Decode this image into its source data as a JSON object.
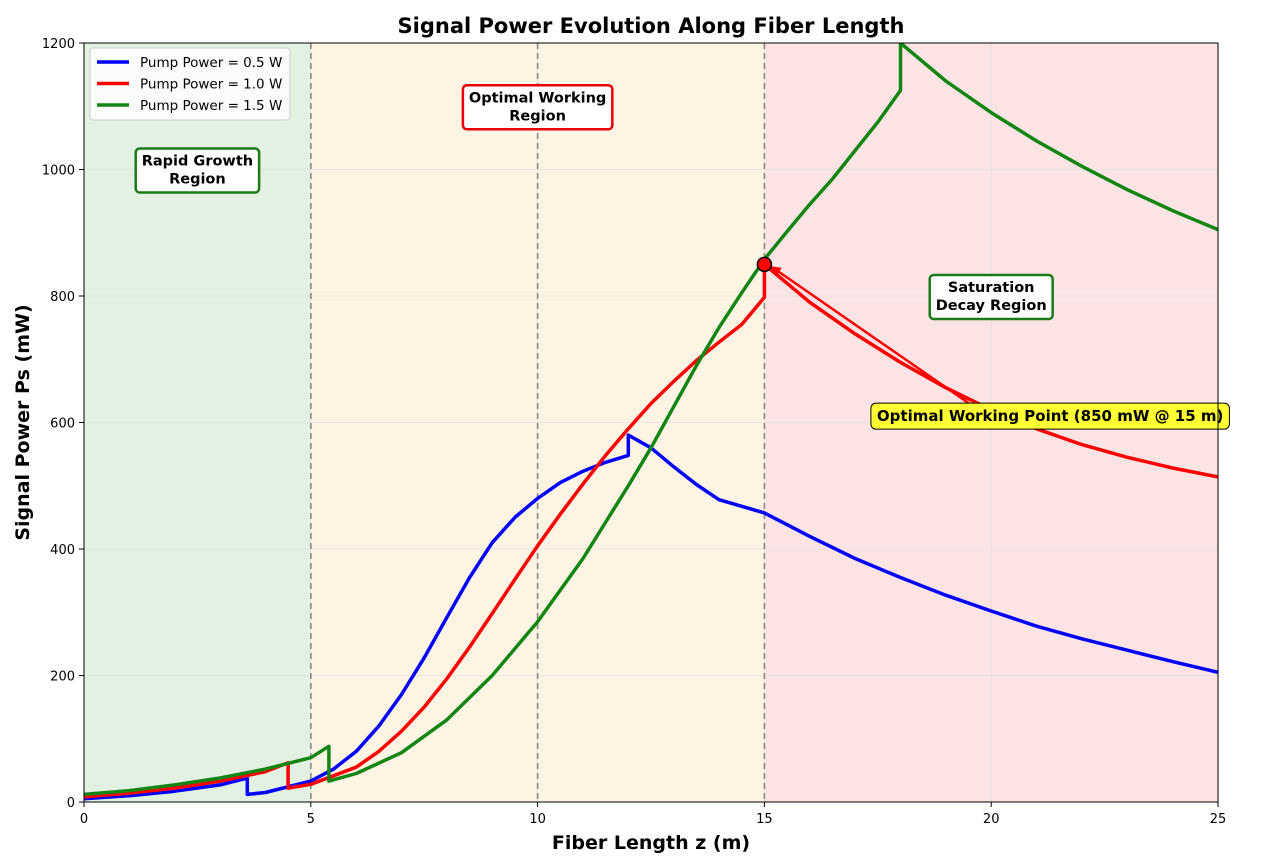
{
  "chart_data": {
    "type": "line",
    "title": "Signal Power Evolution Along Fiber Length",
    "xlabel": "Fiber Length z (m)",
    "ylabel": "Signal Power Ps (mW)",
    "xlim": [
      0,
      25
    ],
    "ylim": [
      0,
      1200
    ],
    "xticks": [
      "0",
      "5",
      "10",
      "15",
      "20",
      "25"
    ],
    "yticks": [
      "0",
      "200",
      "400",
      "600",
      "800",
      "1000",
      "1200"
    ],
    "grid": true,
    "legend_position": "top-left",
    "regions": [
      {
        "label": "Rapid Growth\nRegion",
        "x_start": 0,
        "x_end": 5,
        "fill": "#e3f1e3",
        "border_color": "#1a7a1a",
        "label_x": 2.5,
        "label_y": 1000
      },
      {
        "label": "Optimal Working\nRegion",
        "x_start": 5,
        "x_end": 15,
        "fill": "#fdf4e4",
        "border_color": "#e8000b",
        "label_x": 10,
        "label_y": 1100
      },
      {
        "label": "Saturation\nDecay Region",
        "x_start": 15,
        "x_end": 25,
        "fill": "#fde4e4",
        "border_color": "#1a7a1a",
        "label_x": 20,
        "label_y": 800
      }
    ],
    "vlines": [
      5,
      10,
      15
    ],
    "series": [
      {
        "name": "Pump Power = 0.5 W",
        "color": "#0000ff",
        "points": [
          [
            0,
            5
          ],
          [
            1,
            10
          ],
          [
            2,
            17
          ],
          [
            3,
            27
          ],
          [
            3.6,
            38
          ],
          [
            3.6,
            12
          ],
          [
            4,
            15
          ],
          [
            5,
            33
          ],
          [
            5.5,
            52
          ],
          [
            6,
            80
          ],
          [
            6.5,
            120
          ],
          [
            7,
            170
          ],
          [
            7.5,
            228
          ],
          [
            8,
            292
          ],
          [
            8.5,
            355
          ],
          [
            9,
            410
          ],
          [
            9.5,
            450
          ],
          [
            10,
            480
          ],
          [
            10.5,
            505
          ],
          [
            11,
            523
          ],
          [
            11.5,
            537
          ],
          [
            12,
            548
          ],
          [
            12,
            580
          ],
          [
            12.5,
            560
          ],
          [
            13,
            530
          ],
          [
            13.5,
            502
          ],
          [
            14,
            478
          ],
          [
            15,
            457
          ],
          [
            16,
            420
          ],
          [
            17,
            385
          ],
          [
            18,
            355
          ],
          [
            19,
            327
          ],
          [
            20,
            302
          ],
          [
            21,
            278
          ],
          [
            22,
            258
          ],
          [
            23,
            240
          ],
          [
            24,
            222
          ],
          [
            25,
            205
          ]
        ]
      },
      {
        "name": "Pump Power = 1.0 W",
        "color": "#ff0000",
        "points": [
          [
            0,
            8
          ],
          [
            1,
            14
          ],
          [
            2,
            22
          ],
          [
            3,
            33
          ],
          [
            4,
            48
          ],
          [
            4.5,
            62
          ],
          [
            4.5,
            22
          ],
          [
            5,
            28
          ],
          [
            6,
            55
          ],
          [
            6.5,
            80
          ],
          [
            7,
            112
          ],
          [
            7.5,
            150
          ],
          [
            8,
            195
          ],
          [
            8.5,
            245
          ],
          [
            9,
            298
          ],
          [
            9.5,
            352
          ],
          [
            10,
            405
          ],
          [
            10.5,
            455
          ],
          [
            11,
            503
          ],
          [
            11.5,
            548
          ],
          [
            12,
            590
          ],
          [
            12.5,
            630
          ],
          [
            13,
            665
          ],
          [
            13.5,
            698
          ],
          [
            14,
            727
          ],
          [
            14.5,
            755
          ],
          [
            15,
            798
          ],
          [
            15,
            850
          ],
          [
            16,
            790
          ],
          [
            17,
            740
          ],
          [
            18,
            695
          ],
          [
            19,
            655
          ],
          [
            20,
            620
          ],
          [
            21,
            590
          ],
          [
            22,
            565
          ],
          [
            23,
            545
          ],
          [
            24,
            528
          ],
          [
            25,
            514
          ]
        ]
      },
      {
        "name": "Pump Power = 1.5 W",
        "color": "#138513",
        "points": [
          [
            0,
            12
          ],
          [
            1,
            18
          ],
          [
            2,
            27
          ],
          [
            3,
            38
          ],
          [
            4,
            52
          ],
          [
            5,
            70
          ],
          [
            5.4,
            88
          ],
          [
            5.4,
            33
          ],
          [
            6,
            45
          ],
          [
            7,
            78
          ],
          [
            8,
            130
          ],
          [
            9,
            200
          ],
          [
            10,
            285
          ],
          [
            11,
            385
          ],
          [
            12,
            500
          ],
          [
            12.5,
            560
          ],
          [
            13,
            625
          ],
          [
            13.5,
            690
          ],
          [
            14,
            750
          ],
          [
            14.5,
            805
          ],
          [
            15,
            858
          ],
          [
            15.5,
            902
          ],
          [
            16,
            945
          ],
          [
            16.5,
            985
          ],
          [
            17,
            1030
          ],
          [
            17.5,
            1075
          ],
          [
            18,
            1125
          ],
          [
            18,
            1200
          ],
          [
            19,
            1140
          ],
          [
            20,
            1090
          ],
          [
            21,
            1045
          ],
          [
            22,
            1005
          ],
          [
            23,
            968
          ],
          [
            24,
            935
          ],
          [
            25,
            905
          ]
        ]
      }
    ],
    "marker": {
      "x": 15,
      "y": 850,
      "color": "#ff0000"
    },
    "annotation": {
      "text": "Optimal Working Point (850 mW @ 15 m)",
      "text_x": 21.3,
      "text_y": 610,
      "arrow_to": [
        15,
        850
      ],
      "box_color": "#ffff33"
    }
  }
}
